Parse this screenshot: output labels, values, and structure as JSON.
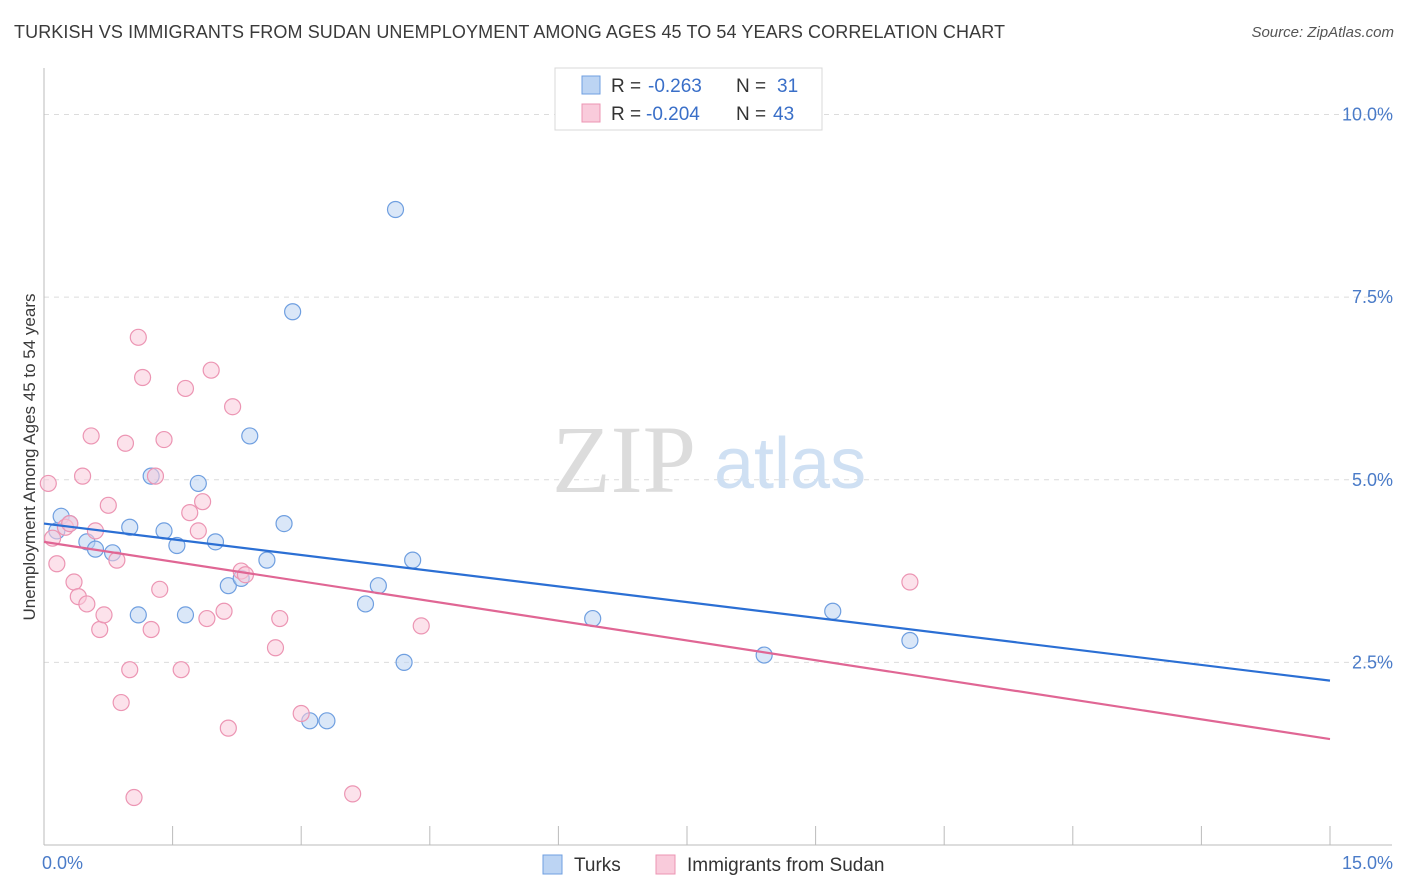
{
  "title": "TURKISH VS IMMIGRANTS FROM SUDAN UNEMPLOYMENT AMONG AGES 45 TO 54 YEARS CORRELATION CHART",
  "source": "Source: ZipAtlas.com",
  "watermark": {
    "zip": "ZIP",
    "atlas": "atlas"
  },
  "chart_data": {
    "type": "scatter",
    "xlabel": "",
    "ylabel": "Unemployment Among Ages 45 to 54 years",
    "xlim": [
      0,
      15
    ],
    "ylim": [
      0,
      10.5
    ],
    "x_tick_labels": [
      {
        "value": 0,
        "label": "0.0%"
      },
      {
        "value": 15,
        "label": "15.0%"
      }
    ],
    "y_ticks": [
      {
        "value": 2.5,
        "label": "2.5%"
      },
      {
        "value": 5.0,
        "label": "5.0%"
      },
      {
        "value": 7.5,
        "label": "7.5%"
      },
      {
        "value": 10.0,
        "label": "10.0%"
      }
    ],
    "legend": {
      "r_label": "R =",
      "n_label": "N =",
      "entries": [
        {
          "r": "-0.263",
          "n": "31"
        },
        {
          "r": "-0.204",
          "n": "43"
        }
      ]
    },
    "series": [
      {
        "name": "Turks",
        "color": "#6f9fe0",
        "fill": "#bcd4f3",
        "trend": {
          "x": [
            0,
            15
          ],
          "y": [
            4.4,
            2.25
          ],
          "color": "#2b6fd4"
        },
        "points": [
          [
            0.2,
            4.5
          ],
          [
            0.3,
            4.4
          ],
          [
            0.5,
            4.15
          ],
          [
            0.6,
            4.05
          ],
          [
            0.8,
            4.0
          ],
          [
            1.0,
            4.35
          ],
          [
            1.1,
            3.15
          ],
          [
            1.25,
            5.05
          ],
          [
            1.4,
            4.3
          ],
          [
            1.55,
            4.1
          ],
          [
            1.65,
            3.15
          ],
          [
            1.8,
            4.95
          ],
          [
            2.0,
            4.15
          ],
          [
            2.15,
            3.55
          ],
          [
            2.3,
            3.65
          ],
          [
            2.4,
            5.6
          ],
          [
            2.6,
            3.9
          ],
          [
            2.8,
            4.4
          ],
          [
            2.9,
            7.3
          ],
          [
            3.1,
            1.7
          ],
          [
            3.3,
            1.7
          ],
          [
            3.75,
            3.3
          ],
          [
            3.9,
            3.55
          ],
          [
            4.1,
            8.7
          ],
          [
            4.2,
            2.5
          ],
          [
            4.3,
            3.9
          ],
          [
            6.4,
            3.1
          ],
          [
            8.4,
            2.6
          ],
          [
            9.2,
            3.2
          ],
          [
            10.1,
            2.8
          ],
          [
            0.15,
            4.3
          ]
        ]
      },
      {
        "name": "Immigrants from Sudan",
        "color": "#ec95b3",
        "fill": "#f9cbdb",
        "trend": {
          "x": [
            0,
            15
          ],
          "y": [
            4.15,
            1.45
          ],
          "color": "#e06694"
        },
        "points": [
          [
            0.05,
            4.95
          ],
          [
            0.1,
            4.2
          ],
          [
            0.15,
            3.85
          ],
          [
            0.25,
            4.35
          ],
          [
            0.35,
            3.6
          ],
          [
            0.4,
            3.4
          ],
          [
            0.45,
            5.05
          ],
          [
            0.5,
            3.3
          ],
          [
            0.55,
            5.6
          ],
          [
            0.6,
            4.3
          ],
          [
            0.65,
            2.95
          ],
          [
            0.7,
            3.15
          ],
          [
            0.75,
            4.65
          ],
          [
            0.85,
            3.9
          ],
          [
            0.9,
            1.95
          ],
          [
            0.95,
            5.5
          ],
          [
            1.0,
            2.4
          ],
          [
            1.05,
            0.65
          ],
          [
            1.1,
            6.95
          ],
          [
            1.15,
            6.4
          ],
          [
            1.25,
            2.95
          ],
          [
            1.3,
            5.05
          ],
          [
            1.35,
            3.5
          ],
          [
            1.4,
            5.55
          ],
          [
            1.6,
            2.4
          ],
          [
            1.65,
            6.25
          ],
          [
            1.7,
            4.55
          ],
          [
            1.8,
            4.3
          ],
          [
            1.85,
            4.7
          ],
          [
            1.9,
            3.1
          ],
          [
            1.95,
            6.5
          ],
          [
            2.1,
            3.2
          ],
          [
            2.15,
            1.6
          ],
          [
            2.2,
            6.0
          ],
          [
            2.3,
            3.75
          ],
          [
            2.35,
            3.7
          ],
          [
            2.7,
            2.7
          ],
          [
            2.75,
            3.1
          ],
          [
            3.0,
            1.8
          ],
          [
            3.6,
            0.7
          ],
          [
            4.4,
            3.0
          ],
          [
            10.1,
            3.6
          ],
          [
            0.3,
            4.4
          ]
        ]
      }
    ]
  }
}
